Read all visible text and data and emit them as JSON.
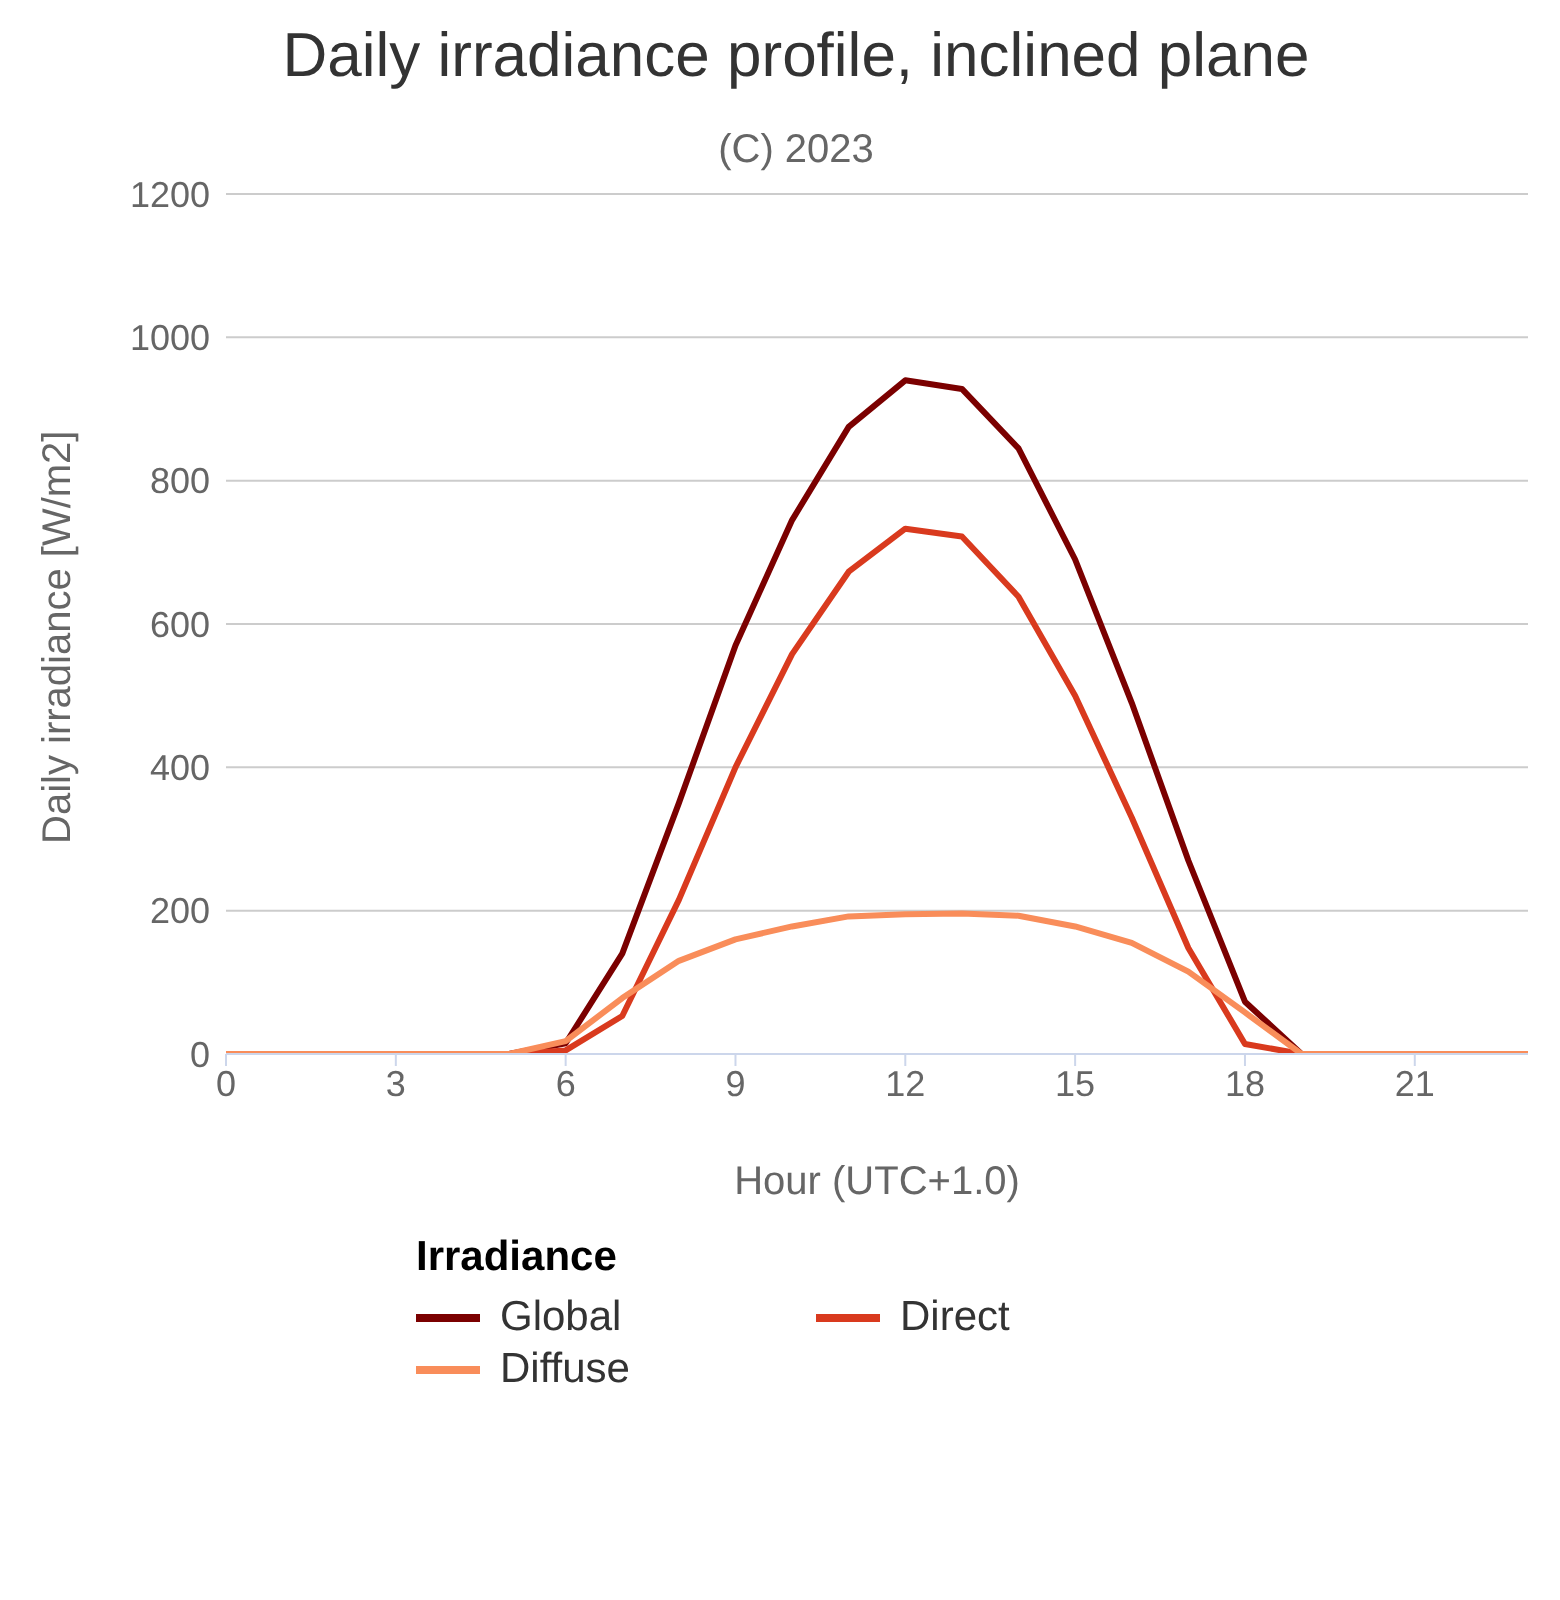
{
  "chart_data": {
    "type": "line",
    "title": "Daily irradiance profile, inclined plane",
    "subtitle": "(C) 2023",
    "xlabel": "Hour (UTC+1.0)",
    "ylabel": "Daily irradiance [W/m2]",
    "legend_title": "Irradiance",
    "x": [
      0,
      1,
      2,
      3,
      4,
      5,
      6,
      7,
      8,
      9,
      10,
      11,
      12,
      13,
      14,
      15,
      16,
      17,
      18,
      19,
      20,
      21,
      22,
      23
    ],
    "series": [
      {
        "name": "Global",
        "color": "#7b0000",
        "values": [
          null,
          null,
          null,
          null,
          null,
          0,
          15,
          140,
          350,
          570,
          745,
          875,
          940,
          928,
          845,
          690,
          490,
          270,
          73,
          0,
          0,
          null,
          null,
          null
        ]
      },
      {
        "name": "Direct",
        "color": "#d93a1e",
        "values": [
          0,
          0,
          0,
          0,
          0,
          0,
          5,
          53,
          215,
          400,
          558,
          673,
          733,
          722,
          638,
          500,
          330,
          148,
          14,
          0,
          0,
          0,
          0,
          0
        ]
      },
      {
        "name": "Diffuse",
        "color": "#f98d5a",
        "values": [
          0,
          0,
          0,
          0,
          0,
          0,
          18,
          78,
          130,
          160,
          178,
          192,
          195,
          196,
          193,
          178,
          155,
          115,
          58,
          0,
          0,
          0,
          0,
          0
        ]
      }
    ],
    "xlim": [
      0,
      23
    ],
    "xticks": [
      0,
      3,
      6,
      9,
      12,
      15,
      18,
      21
    ],
    "ylim": [
      0,
      1200
    ],
    "yticks": [
      0,
      200,
      400,
      600,
      800,
      1000,
      1200
    ],
    "grid": "y",
    "legend": "bottom",
    "marker": "none",
    "line_style": "solid"
  }
}
